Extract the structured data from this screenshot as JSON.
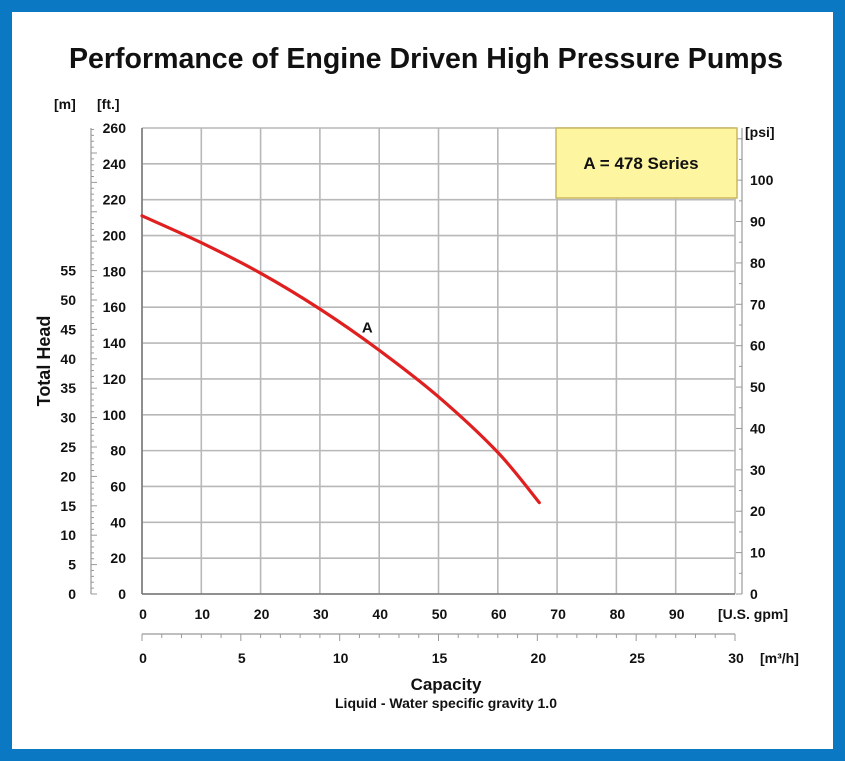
{
  "chart_data": {
    "type": "line",
    "title": "Performance of Engine Driven High Pressure Pumps",
    "legend_box": "A = 478 Series",
    "ylabel": "Total Head",
    "xlabel": "Capacity",
    "note": "Liquid - Water specific gravity 1.0",
    "units": {
      "left_outer": "[m]",
      "left_inner": "[ft.]",
      "right": "[psi]",
      "bottom_primary": "[U.S. gpm]",
      "bottom_secondary": "[m³/h]"
    },
    "axes": {
      "ft": {
        "range": [
          0,
          260
        ],
        "ticks": [
          0,
          20,
          40,
          60,
          80,
          100,
          120,
          140,
          160,
          180,
          200,
          220,
          240,
          260
        ]
      },
      "m": {
        "range": [
          0,
          79.25
        ],
        "ticks": [
          0,
          5,
          10,
          15,
          20,
          25,
          30,
          35,
          40,
          45,
          50,
          55
        ]
      },
      "psi": {
        "range": [
          0,
          112.6
        ],
        "ticks": [
          0,
          10,
          20,
          30,
          40,
          50,
          60,
          70,
          80,
          90,
          100
        ]
      },
      "gpm": {
        "range": [
          0,
          100
        ],
        "ticks": [
          0,
          10,
          20,
          30,
          40,
          50,
          60,
          70,
          80,
          90
        ]
      },
      "m3h": {
        "range": [
          0,
          30
        ],
        "ticks": [
          0,
          5,
          10,
          15,
          20,
          25,
          30
        ]
      }
    },
    "grid": true,
    "series": [
      {
        "name": "A",
        "color": "#e02020",
        "x_gpm": [
          0,
          10,
          20,
          30,
          40,
          50,
          60,
          67
        ],
        "y_ft": [
          211,
          196,
          179,
          159,
          136,
          110,
          79,
          51
        ],
        "label_position": [
          38,
          146
        ]
      }
    ]
  }
}
